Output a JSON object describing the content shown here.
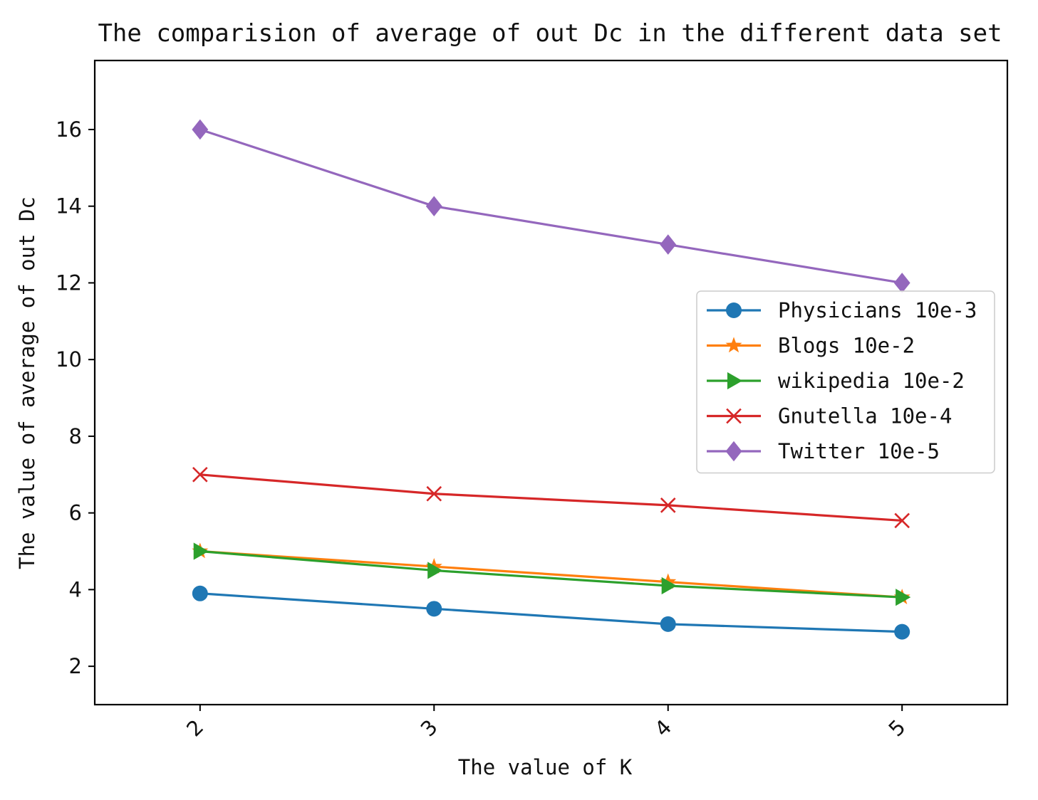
{
  "chart_data": {
    "type": "line",
    "title": "The comparision of average of out Dc in the different data set",
    "xlabel": "The value of K",
    "ylabel": "The value of average of out Dc",
    "x": [
      2,
      3,
      4,
      5
    ],
    "xlim": [
      1.55,
      5.45
    ],
    "ylim": [
      1.0,
      17.8
    ],
    "yticks": [
      2,
      4,
      6,
      8,
      10,
      12,
      14,
      16
    ],
    "xtick_rotation": 45,
    "legend_position": "center-right",
    "series": [
      {
        "name": "Physicians 10e-3",
        "color": "#1f77b4",
        "marker": "circle",
        "values": [
          3.9,
          3.5,
          3.1,
          2.9
        ]
      },
      {
        "name": "Blogs 10e-2",
        "color": "#ff7f0e",
        "marker": "star",
        "values": [
          5.0,
          4.6,
          4.2,
          3.8
        ]
      },
      {
        "name": "wikipedia 10e-2",
        "color": "#2ca02c",
        "marker": "triangle-right",
        "values": [
          5.0,
          4.5,
          4.1,
          3.8
        ]
      },
      {
        "name": "Gnutella 10e-4",
        "color": "#d62728",
        "marker": "x",
        "values": [
          7.0,
          6.5,
          6.2,
          5.8
        ]
      },
      {
        "name": "Twitter 10e-5",
        "color": "#9467bd",
        "marker": "diamond",
        "values": [
          16.0,
          14.0,
          13.0,
          12.0
        ]
      }
    ]
  }
}
